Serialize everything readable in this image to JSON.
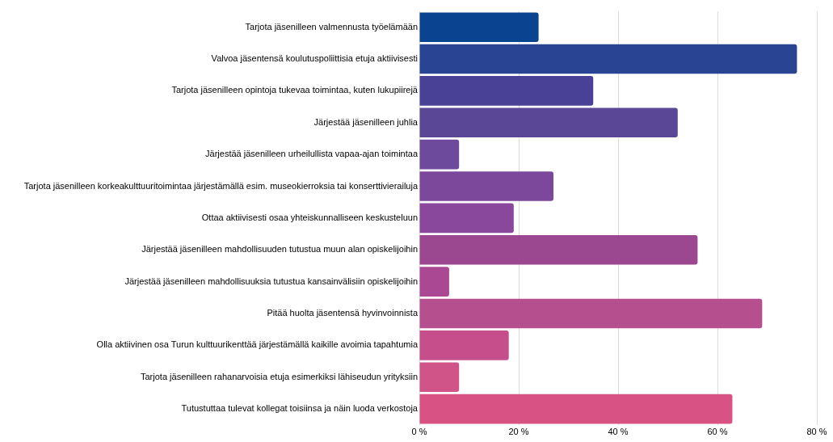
{
  "chart_data": {
    "type": "bar",
    "orientation": "horizontal",
    "categories": [
      "Tarjota jäsenilleen valmennusta työelämään",
      "Valvoa jäsentensä koulutuspoliittisia etuja aktiivisesti",
      "Tarjota jäsenilleen opintoja tukevaa toimintaa, kuten lukupiirejä",
      "Järjestää jäsenilleen juhlia",
      "Järjestää jäsenilleen urheilullista vapaa-ajan toimintaa",
      "Tarjota jäsenilleen korkeakulttuuritoimintaa järjestämällä esim. museokierroksia tai konserttivierailuja",
      "Ottaa aktiivisesti osaa yhteiskunnalliseen keskusteluun",
      "Järjestää jäsenilleen mahdollisuuden tutustua muun alan opiskelijoihin",
      "Järjestää jäsenilleen mahdollisuuksia tutustua kansainvälisiin opiskelijoihin",
      "Pitää huolta jäsentensä hyvinvoinnista",
      "Olla aktiivinen osa Turun kulttuurikenttää järjestämällä kaikille avoimia tapahtumia",
      "Tarjota jäsenilleen rahanarvoisia etuja esimerkiksi lähiseudun yrityksiin",
      "Tutustuttaa tulevat kollegat toisiinsa ja näin luoda verkostoja"
    ],
    "values": [
      24,
      76,
      35,
      52,
      8,
      27,
      19,
      56,
      6,
      69,
      18,
      8,
      63
    ],
    "colors": [
      "#0a4390",
      "#2a4494",
      "#484196",
      "#5a4897",
      "#6e4a9c",
      "#7b489b",
      "#8a489d",
      "#9b4890",
      "#ab4894",
      "#b64f8d",
      "#c64f8b",
      "#d15488",
      "#d95284"
    ],
    "xlim": [
      0,
      80
    ],
    "xticks": [
      {
        "value": 0,
        "label": "0 %"
      },
      {
        "value": 20,
        "label": "20 %"
      },
      {
        "value": 40,
        "label": "40 %"
      },
      {
        "value": 60,
        "label": "60 %"
      },
      {
        "value": 80,
        "label": "80 %"
      }
    ],
    "grid": "x",
    "legend": false
  }
}
